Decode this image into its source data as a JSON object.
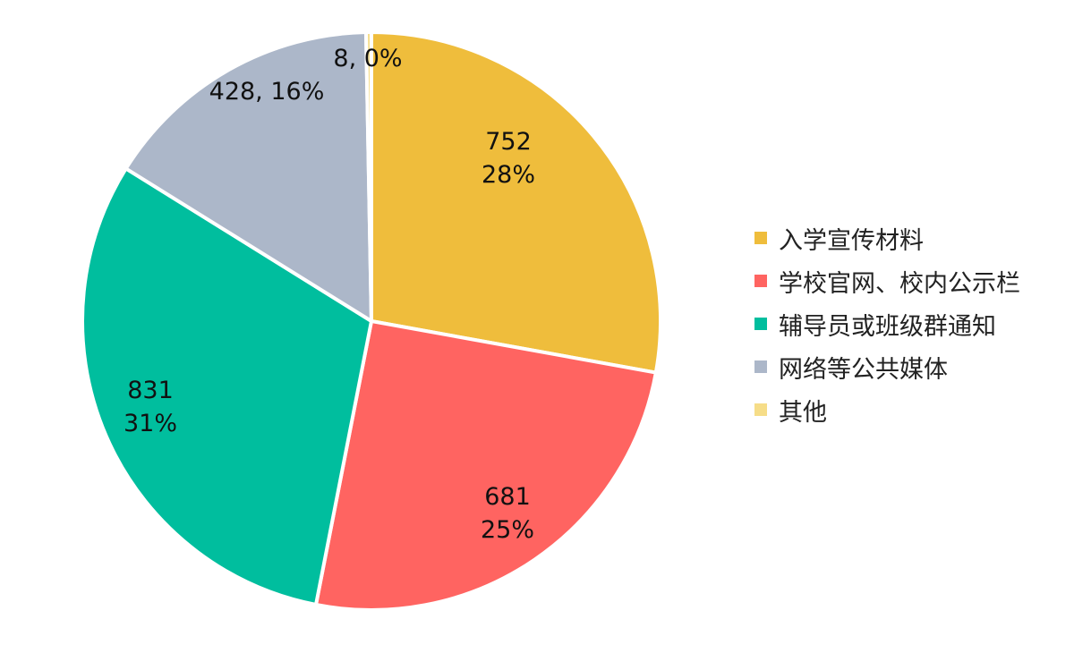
{
  "chart_data": {
    "type": "pie",
    "series": [
      {
        "categories": [
          "入学宣传材料",
          "学校官网、校内公示栏",
          "辅导员或班级群通知",
          "网络等公共媒体",
          "其他"
        ],
        "values": [
          752,
          681,
          831,
          428,
          8
        ],
        "percent_labels": [
          "28%",
          "25%",
          "31%",
          "16%",
          "0%"
        ],
        "data_labels": [
          "752\n28%",
          "681\n25%",
          "831\n31%",
          "428, 16%",
          "8, 0%"
        ],
        "colors": [
          "#EFBD3C",
          "#FF6461",
          "#00BE9E",
          "#ACB7C9",
          "#F6DD88"
        ]
      }
    ],
    "start_angle_deg": 0,
    "direction": "clockwise",
    "legend_position": "right"
  }
}
